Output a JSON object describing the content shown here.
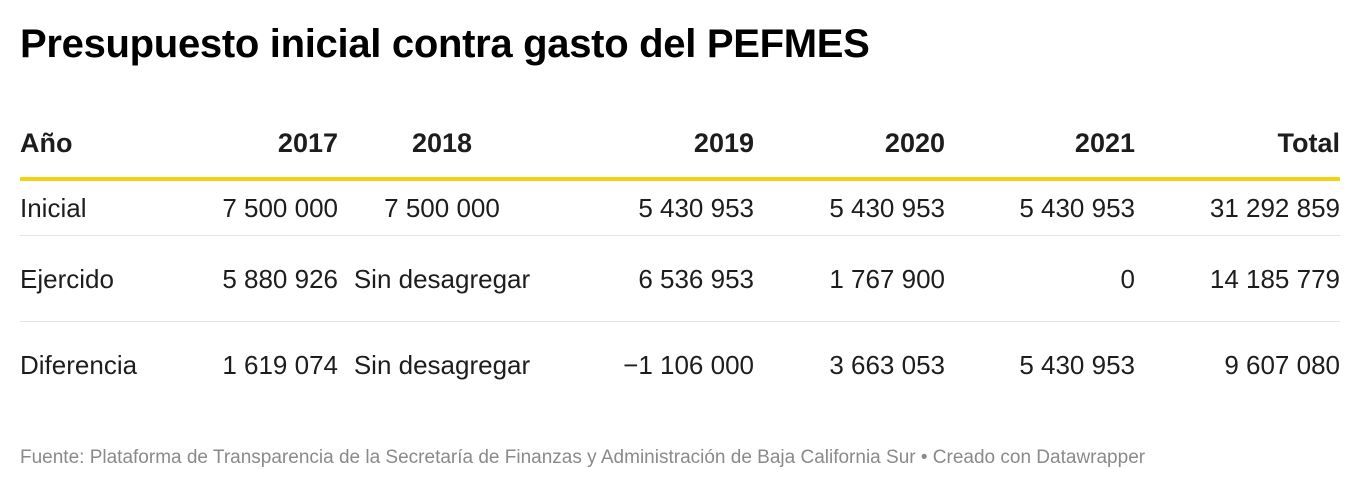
{
  "title": "Presupuesto inicial contra gasto del PEFMES",
  "source": "Fuente: Plataforma de Transparencia de la Secretaría de Finanzas y Administración de Baja California Sur • Creado con Datawrapper",
  "colors": {
    "header_rule": "#f2d20f",
    "row_rule": "#e4e4e4",
    "text": "#1d1d1d",
    "source_text": "#8a8a8a"
  },
  "chart_data": {
    "type": "table",
    "title": "Presupuesto inicial contra gasto del PEFMES",
    "columns": [
      "Año",
      "2017",
      "2018",
      "2019",
      "2020",
      "2021",
      "Total"
    ],
    "rows": [
      [
        "Inicial",
        "7 500 000",
        "7 500 000",
        "5 430 953",
        "5 430 953",
        "5 430 953",
        "31 292 859"
      ],
      [
        "Ejercido",
        "5 880 926",
        "Sin desagregar",
        "6 536 953",
        "1 767 900",
        "0",
        "14 185 779"
      ],
      [
        "Diferencia",
        "1 619 074",
        "Sin desagregar",
        "−1 106 000",
        "3 663 053",
        "5 430 953",
        "9 607 080"
      ]
    ]
  }
}
